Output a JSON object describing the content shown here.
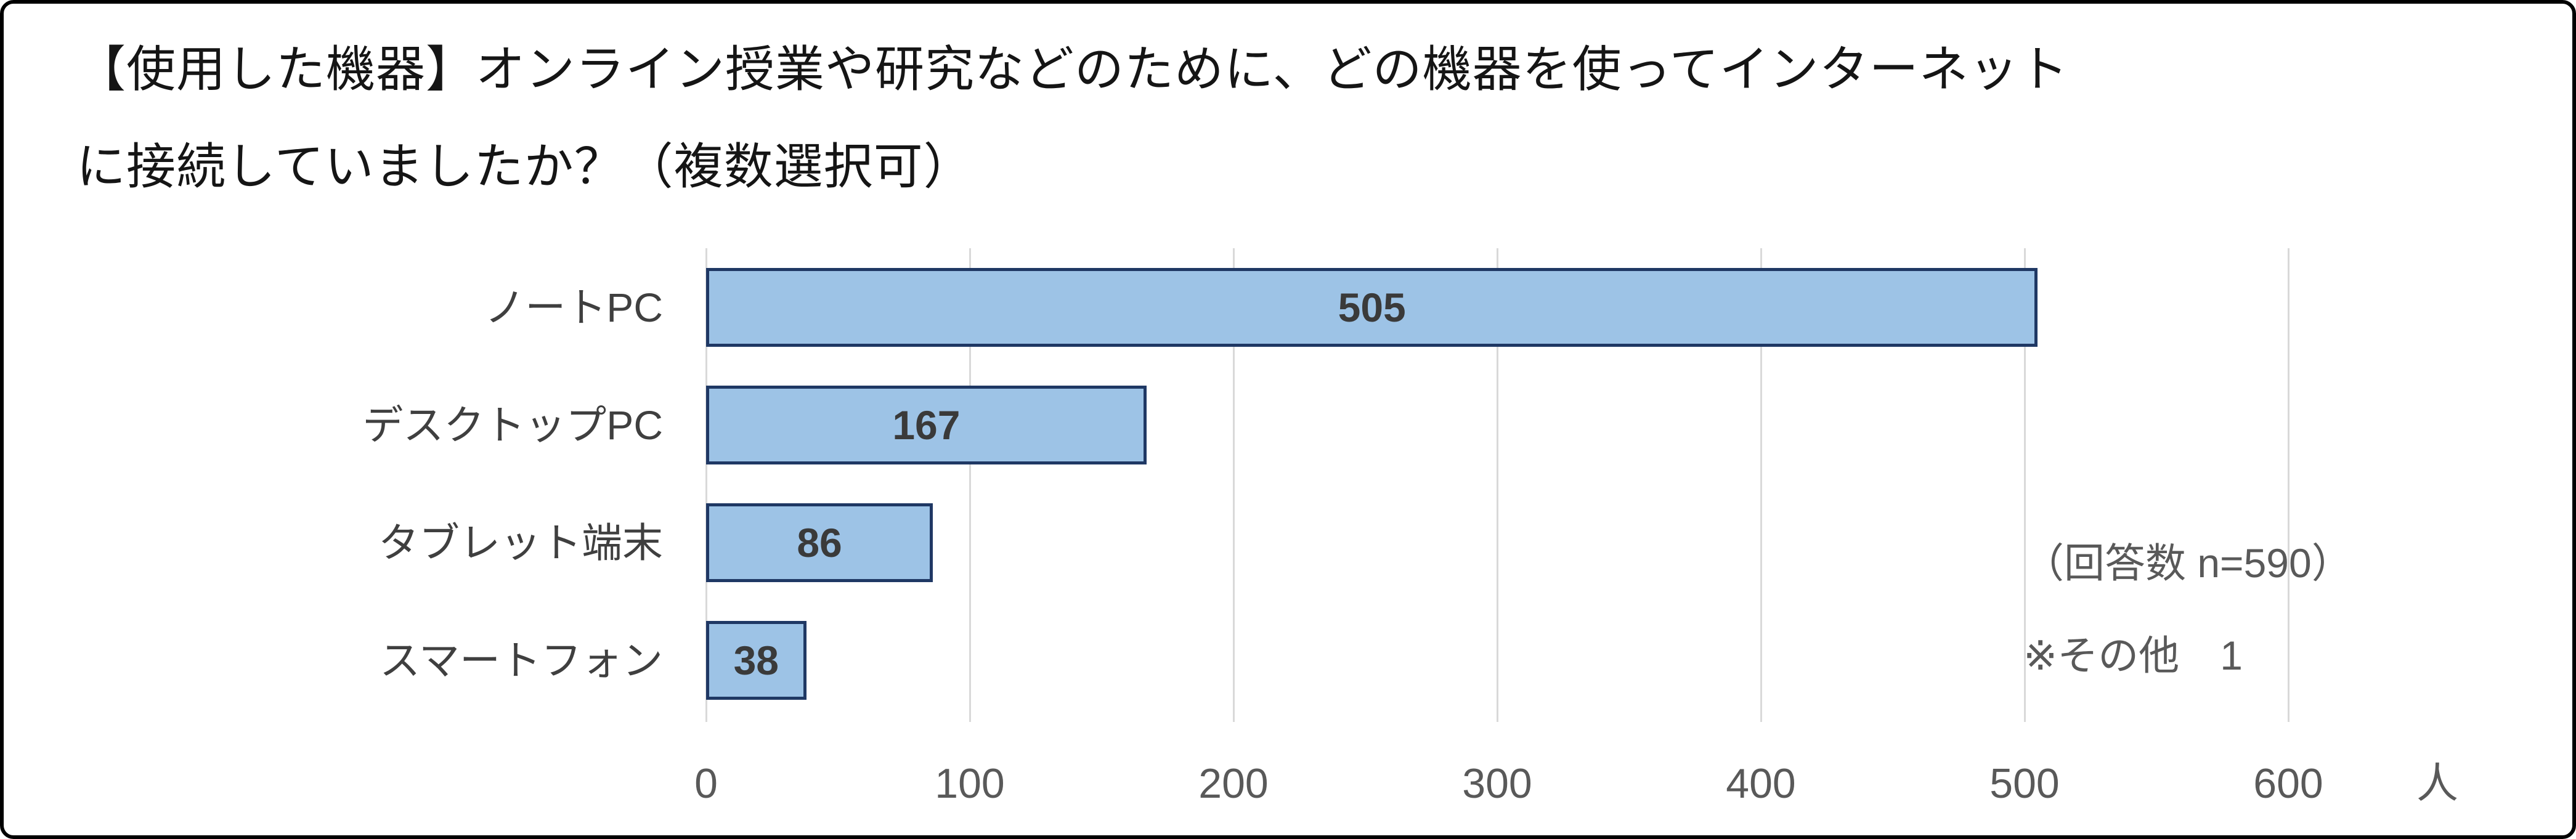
{
  "title": {
    "line1": "【使用した機器】オンライン授業や研究などのために、どの機器を使ってインターネット",
    "line2": "に接続していましたか？（複数選択可）"
  },
  "chart_data": {
    "type": "bar",
    "orientation": "horizontal",
    "categories": [
      "ノートPC",
      "デスクトップPC",
      "タブレット端末",
      "スマートフォン"
    ],
    "values": [
      505,
      167,
      86,
      38
    ],
    "value_labels": [
      "505",
      "167",
      "86",
      "38"
    ],
    "x_ticks": [
      "0",
      "100",
      "200",
      "300",
      "400",
      "500",
      "600"
    ],
    "x_tick_values": [
      0,
      100,
      200,
      300,
      400,
      500,
      600
    ],
    "x_axis_unit": "人",
    "xlim": [
      0,
      600
    ],
    "grid": true,
    "legend": false,
    "annotations": {
      "line1": "（回答数 n=590）",
      "line2": "※その他　1"
    },
    "colors": {
      "bar_fill": "#9DC3E6",
      "bar_border": "#1F3864",
      "gridline": "#D9D9D9",
      "tick_text": "#595959",
      "value_text": "#3A3A3A",
      "category_text": "#3F3F3F",
      "annotation_text": "#595959",
      "title_text": "#151515"
    }
  }
}
